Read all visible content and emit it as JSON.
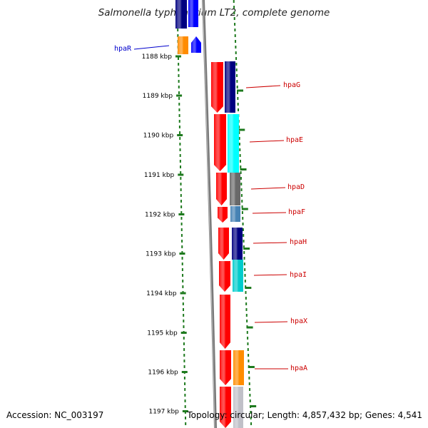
{
  "title": "Salmonella typhimurium LT2, complete genome",
  "footer": {
    "accession": "Accession: NC_003197",
    "summary": "Topology: circular; Length: 4,857,432 bp; Genes: 4,541"
  },
  "scale": {
    "unit": "kbp",
    "ticks": [
      {
        "label": "1188 kbp"
      },
      {
        "label": "1189 kbp"
      },
      {
        "label": "1190 kbp"
      },
      {
        "label": "1191 kbp"
      },
      {
        "label": "1192 kbp"
      },
      {
        "label": "1193 kbp"
      },
      {
        "label": "1194 kbp"
      },
      {
        "label": "1195 kbp"
      },
      {
        "label": "1196 kbp"
      },
      {
        "label": "1197 kbp"
      }
    ]
  },
  "genes": [
    {
      "name": "hpaR",
      "label_color": "#0000cc"
    },
    {
      "name": "hpaG",
      "label_color": "#cc0000"
    },
    {
      "name": "hpaE",
      "label_color": "#cc0000"
    },
    {
      "name": "hpaD",
      "label_color": "#cc0000"
    },
    {
      "name": "hpaF",
      "label_color": "#cc0000"
    },
    {
      "name": "hpaH",
      "label_color": "#cc0000"
    },
    {
      "name": "hpaI",
      "label_color": "#cc0000"
    },
    {
      "name": "hpaX",
      "label_color": "#cc0000"
    },
    {
      "name": "hpaA",
      "label_color": "#cc0000"
    }
  ],
  "colors": {
    "scale_dots": "#1e7a1e",
    "backbone": "#7a7a7a",
    "cds_forward": "#ff0000",
    "cds_reverse": "#0000ff",
    "cog_navy": "#000080",
    "cog_cyan": "#00ffff",
    "cog_gray": "#696969",
    "cog_steelblue": "#4682b4",
    "cog_teal": "#00cccc",
    "cog_orange": "#ff8c00",
    "cog_lightgray": "#c0c0c8"
  }
}
